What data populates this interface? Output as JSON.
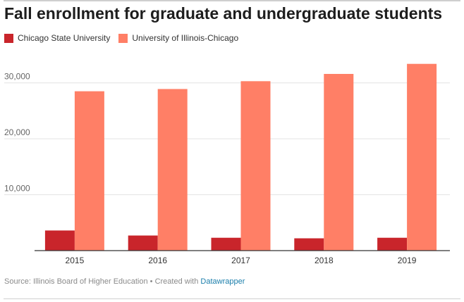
{
  "title": "Fall enrollment for graduate and undergraduate students",
  "footer": {
    "source": "Source: Illinois Board of Higher Education • Created with ",
    "link": "Datawrapper"
  },
  "colors": {
    "series_a": "#c9252b",
    "series_b": "#ff7f66",
    "grid": "#e3e3e3",
    "axis": "#333333"
  },
  "chart_data": {
    "type": "bar",
    "title": "Fall enrollment for graduate and undergraduate students",
    "xlabel": "",
    "ylabel": "",
    "categories": [
      "2015",
      "2016",
      "2017",
      "2018",
      "2019"
    ],
    "series": [
      {
        "name": "Chicago State University",
        "values": [
          3600,
          2700,
          2300,
          2200,
          2300
        ],
        "color": "#c9252b"
      },
      {
        "name": "University of Illinois-Chicago",
        "values": [
          28500,
          28900,
          30300,
          31600,
          33400
        ],
        "color": "#ff7f66"
      }
    ],
    "ylim": [
      0,
      35000
    ],
    "yticks": [
      10000,
      20000,
      30000
    ],
    "ytick_labels": [
      "10,000",
      "20,000",
      "30,000"
    ],
    "grid": true,
    "legend_position": "top-left"
  }
}
